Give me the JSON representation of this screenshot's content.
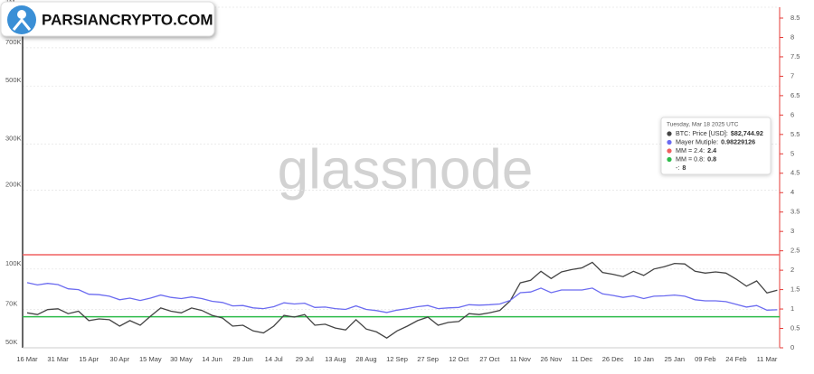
{
  "logo": "PARSIANCRYPTO.COM",
  "chart_data": {
    "type": "line",
    "watermark": "glassnode",
    "categories": [
      "16 Mar",
      null,
      null,
      "31 Mar",
      null,
      null,
      "15 Apr",
      null,
      null,
      "30 Apr",
      null,
      null,
      "15 May",
      null,
      null,
      "30 May",
      null,
      null,
      "14 Jun",
      null,
      null,
      "29 Jun",
      null,
      null,
      "14 Jul",
      null,
      null,
      "29 Jul",
      null,
      null,
      "13 Aug",
      null,
      null,
      "28 Aug",
      null,
      null,
      "12 Sep",
      null,
      null,
      "27 Sep",
      null,
      null,
      "12 Oct",
      null,
      null,
      "27 Oct",
      null,
      null,
      "11 Nov",
      null,
      null,
      "26 Nov",
      null,
      null,
      "11 Dec",
      null,
      null,
      "26 Dec",
      null,
      null,
      "10 Jan",
      null,
      null,
      "25 Jan",
      null,
      null,
      "09 Feb",
      null,
      null,
      "24 Feb",
      null,
      null,
      "11 Mar",
      null
    ],
    "series": [
      {
        "color": "#444444",
        "values": [
          68000,
          67000,
          70000,
          70500,
          67500,
          69000,
          63500,
          64500,
          64000,
          60500,
          63500,
          61000,
          66000,
          71000,
          69000,
          68000,
          71000,
          69500,
          66500,
          65000,
          60500,
          61000,
          58000,
          57000,
          60500,
          66500,
          65500,
          67000,
          61000,
          61500,
          59500,
          58500,
          64000,
          59000,
          57500,
          54500,
          58000,
          60500,
          63500,
          65500,
          61000,
          62500,
          63000,
          67500,
          67000,
          68000,
          69500,
          75500,
          88500,
          90500,
          98000,
          92000,
          97500,
          99500,
          101000,
          106000,
          97000,
          95500,
          93500,
          98000,
          94500,
          100000,
          102000,
          105000,
          104500,
          98000,
          96500,
          97500,
          96500,
          91500,
          86000,
          90000,
          81000,
          83000
        ]
      },
      {
        "color": "#6b6bf0",
        "axis": "y2",
        "values": [
          1.68,
          1.62,
          1.66,
          1.63,
          1.52,
          1.5,
          1.38,
          1.37,
          1.33,
          1.24,
          1.28,
          1.22,
          1.28,
          1.36,
          1.3,
          1.27,
          1.31,
          1.27,
          1.2,
          1.17,
          1.08,
          1.09,
          1.03,
          1.01,
          1.06,
          1.16,
          1.13,
          1.15,
          1.04,
          1.05,
          1.01,
          0.99,
          1.08,
          0.99,
          0.96,
          0.91,
          0.97,
          1.01,
          1.06,
          1.09,
          1.01,
          1.03,
          1.04,
          1.11,
          1.1,
          1.11,
          1.13,
          1.22,
          1.42,
          1.44,
          1.54,
          1.42,
          1.49,
          1.49,
          1.49,
          1.54,
          1.39,
          1.35,
          1.3,
          1.34,
          1.27,
          1.33,
          1.34,
          1.36,
          1.33,
          1.24,
          1.21,
          1.21,
          1.19,
          1.12,
          1.05,
          1.09,
          0.97,
          0.98
        ]
      }
    ],
    "hlines": [
      {
        "value": 2.4,
        "color": "#f06060",
        "axis": "y2"
      },
      {
        "value": 0.8,
        "color": "#2dbb4a",
        "axis": "y2"
      }
    ],
    "log_scale": true,
    "ylim": [
      50000,
      1000000
    ],
    "yticks": [
      {
        "value": 50000,
        "label": "50K"
      },
      {
        "value": 70000,
        "label": "70K"
      },
      {
        "value": 100000,
        "label": "100K"
      },
      {
        "value": 200000,
        "label": "200K"
      },
      {
        "value": 300000,
        "label": "300K"
      },
      {
        "value": 500000,
        "label": "500K"
      },
      {
        "value": 700000,
        "label": "700K"
      },
      {
        "value": 1000000,
        "label": "1M"
      }
    ],
    "y2lim": [
      0,
      8.5
    ],
    "y2ticks": [
      0,
      0.5,
      1,
      1.5,
      2,
      2.5,
      3,
      3.5,
      4,
      4.5,
      5,
      5.5,
      6,
      6.5,
      7,
      7.5,
      8,
      8.5
    ],
    "y2_color": "#e53935",
    "tooltip": {
      "title": "Tuesday, Mar 18 2025 UTC",
      "items": [
        {
          "label": "BTC: Price [USD]:",
          "value": "$82,744.92",
          "color": "#444444"
        },
        {
          "label": "Mayer Mutiple:",
          "value": "0.98229126",
          "color": "#6b6bf0"
        },
        {
          "label": "MM = 2.4:",
          "value": "2.4",
          "color": "#f06060"
        },
        {
          "label": "MM = 0.8:",
          "value": "0.8",
          "color": "#2dbb4a"
        },
        {
          "label": "-:",
          "value": "8"
        }
      ]
    }
  }
}
